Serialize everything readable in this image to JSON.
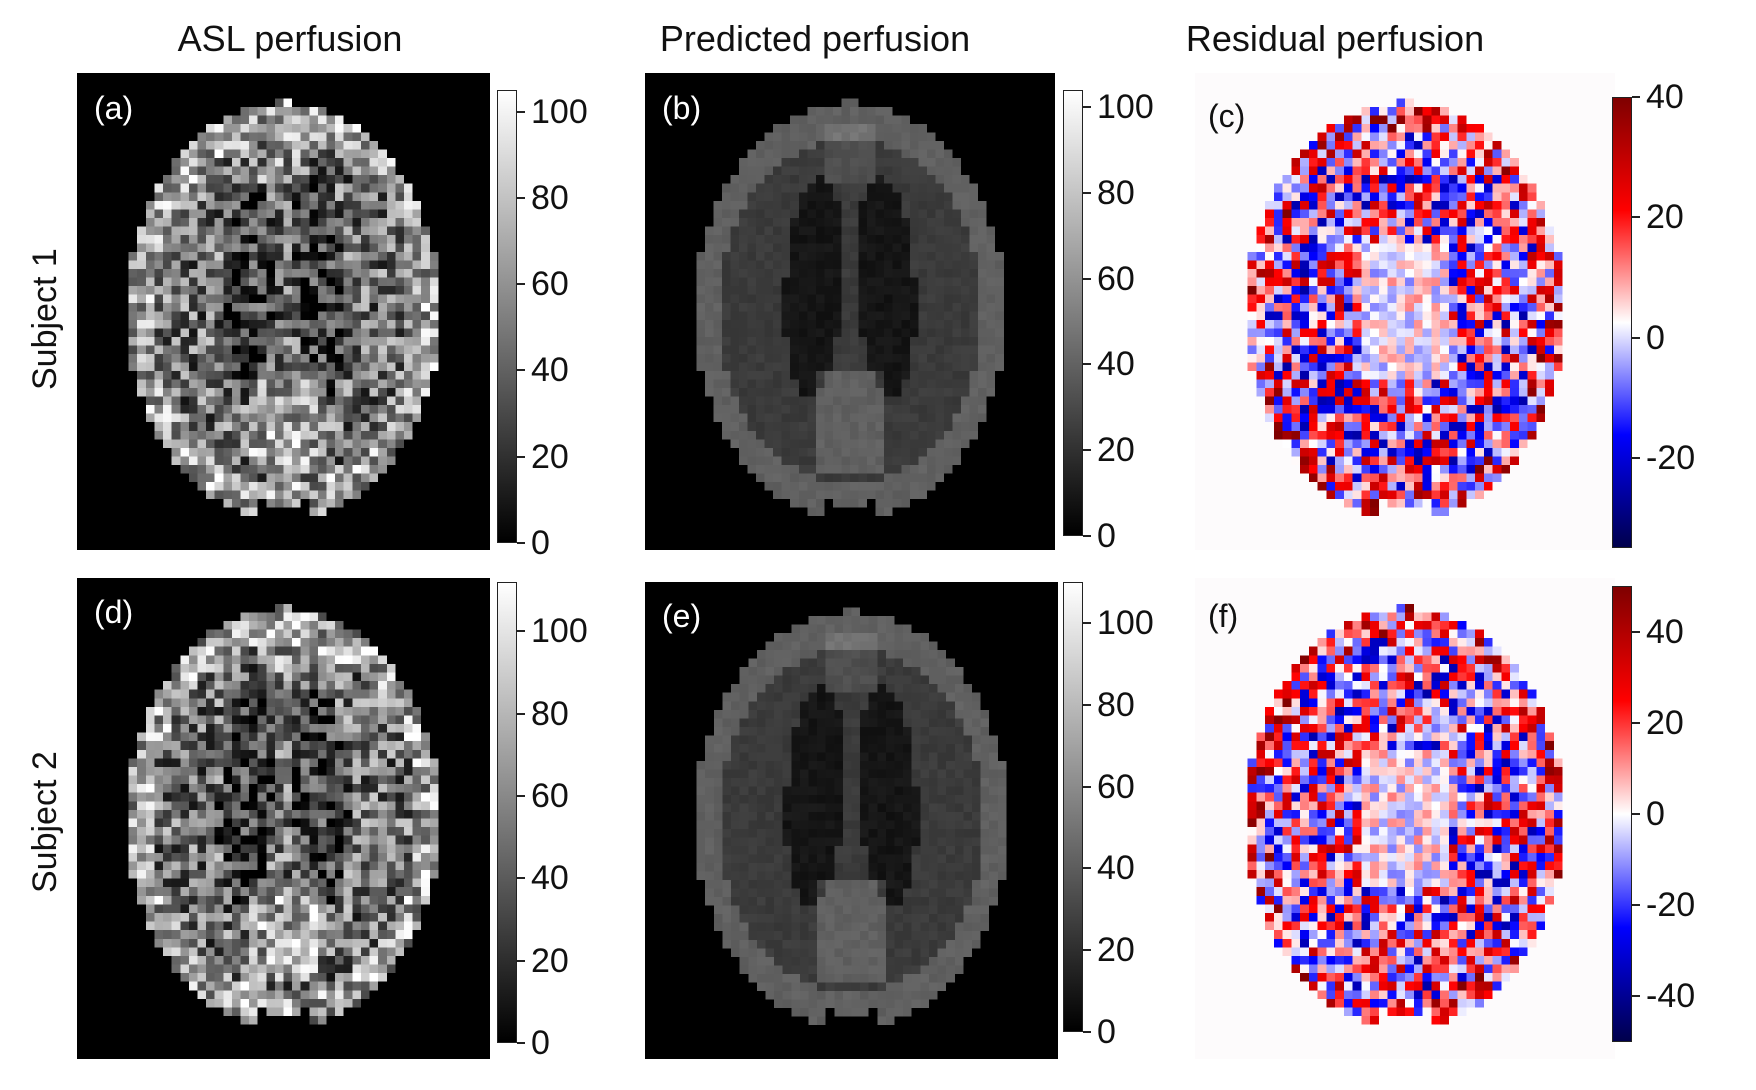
{
  "columns": [
    {
      "title": "ASL perfusion"
    },
    {
      "title": "Predicted perfusion"
    },
    {
      "title": "Residual perfusion"
    }
  ],
  "rows": [
    {
      "title": "Subject 1"
    },
    {
      "title": "Subject 2"
    }
  ],
  "panels": [
    {
      "id": "a",
      "tag": "(a)",
      "kind": "asl",
      "colormap": "gray",
      "ticks": [
        "0",
        "20",
        "40",
        "60",
        "80",
        "100"
      ],
      "range": [
        0,
        105
      ]
    },
    {
      "id": "b",
      "tag": "(b)",
      "kind": "predicted",
      "colormap": "gray",
      "ticks": [
        "0",
        "20",
        "40",
        "60",
        "80",
        "100"
      ],
      "range": [
        0,
        104
      ]
    },
    {
      "id": "c",
      "tag": "(c)",
      "kind": "residual",
      "colormap": "seismic",
      "ticks": [
        "-20",
        "0",
        "20",
        "40"
      ],
      "range": [
        -35,
        40
      ]
    },
    {
      "id": "d",
      "tag": "(d)",
      "kind": "asl",
      "colormap": "gray",
      "ticks": [
        "0",
        "20",
        "40",
        "60",
        "80",
        "100"
      ],
      "range": [
        0,
        112
      ]
    },
    {
      "id": "e",
      "tag": "(e)",
      "kind": "predicted",
      "colormap": "gray",
      "ticks": [
        "0",
        "20",
        "40",
        "60",
        "80",
        "100"
      ],
      "range": [
        0,
        110
      ]
    },
    {
      "id": "f",
      "tag": "(f)",
      "kind": "residual",
      "colormap": "seismic",
      "ticks": [
        "-40",
        "-20",
        "0",
        "20",
        "40"
      ],
      "range": [
        -50,
        50
      ]
    }
  ],
  "colors": {
    "residual_positive": "#7f0000",
    "residual_zero": "#ffffff",
    "residual_negative": "#00007f",
    "image_background": "#000000"
  }
}
